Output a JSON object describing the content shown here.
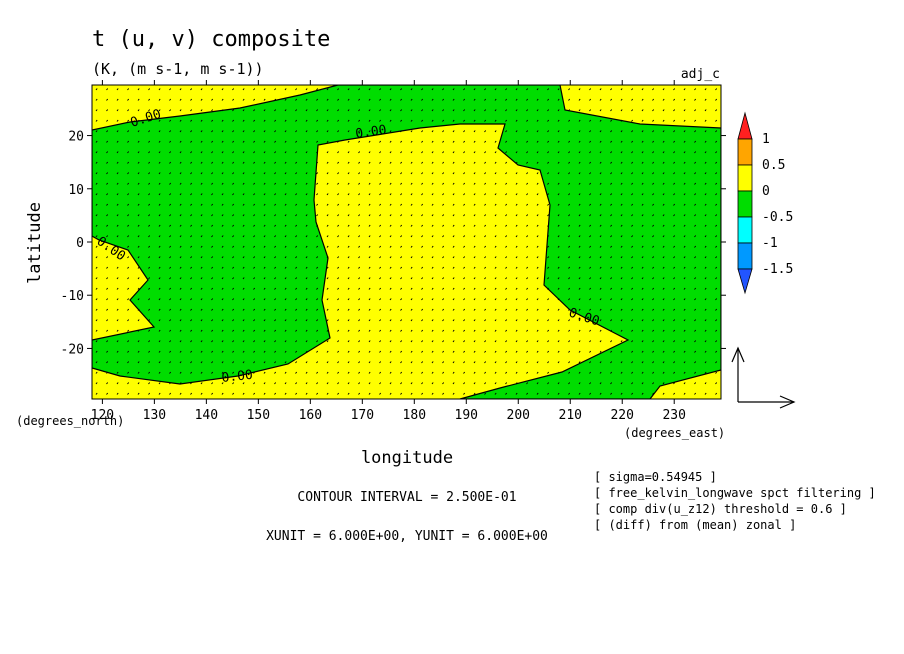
{
  "chart_data": {
    "type": "heatmap",
    "title": "t (u, v) composite",
    "subtitle": "(K, (m s-1, m s-1))",
    "tag": "adj_c",
    "xlabel": "longitude",
    "ylabel": "latitude",
    "x_unit_label": "(degrees_east)",
    "y_unit_label": "(degrees_north)",
    "xlim": [
      118,
      239
    ],
    "ylim": [
      -29.5,
      29.5
    ],
    "xticks": [
      "120",
      "130",
      "140",
      "150",
      "160",
      "170",
      "180",
      "190",
      "200",
      "210",
      "220",
      "230"
    ],
    "yticks": [
      "20",
      "10",
      "0",
      "-10",
      "-20"
    ],
    "colorbar": {
      "labels": [
        "1",
        "0.5",
        "0",
        "-0.5",
        "-1",
        "-1.5"
      ],
      "colors": [
        "#ff2020",
        "#ffa500",
        "#ffff00",
        "#00dd00",
        "#00ffff",
        "#0099ff",
        "#2255ff"
      ]
    },
    "contour_labels": [
      "0.00",
      "0.00",
      "0.00",
      "0.00",
      "0.00"
    ],
    "contour_interval_text": "CONTOUR INTERVAL = 2.500E-01",
    "unit_vector_text": "XUNIT = 6.000E+00, YUNIT = 6.000E+00",
    "notes": [
      "[ sigma=0.54945 ]",
      "[ free_kelvin_longwave spct filtering ]",
      "[ comp div(u_z12) threshold = 0.6 ]",
      "[ (diff) from (mean) zonal ]"
    ],
    "regions": [
      {
        "value_range": "0 to 0.5",
        "color": "#ffff00",
        "description": "background positive"
      },
      {
        "value_range": "-0.5 to 0",
        "color": "#00dd00",
        "description": "negative region"
      }
    ]
  }
}
